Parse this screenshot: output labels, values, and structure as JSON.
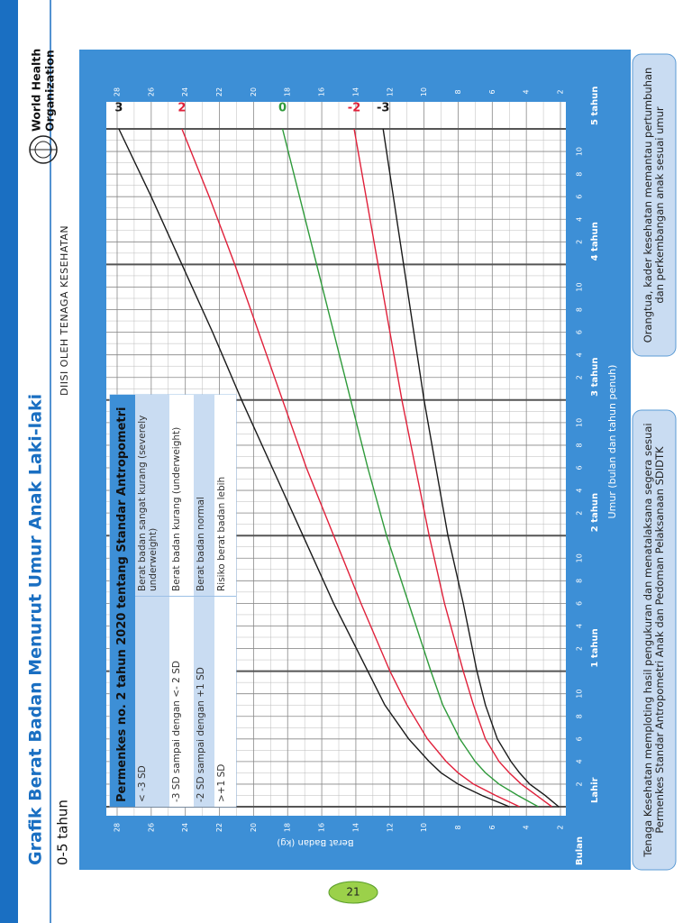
{
  "header": {
    "title": "Grafik Berat Badan Menurut Umur Anak Laki-laki",
    "subtitle": "0-5 tahun",
    "note": "DIISI OLEH TENAGA KESEHATAN",
    "organization": [
      "World Health",
      "Organization"
    ],
    "page": "21"
  },
  "chart_data": {
    "type": "line",
    "x_label": "Umur (bulan dan tahun penuh)",
    "y_label": "Berat Badan (kg)",
    "x_unit_label": "Bulan",
    "x": [
      0,
      1,
      2,
      3,
      4,
      6,
      9,
      12,
      18,
      24,
      30,
      36,
      42,
      48,
      54,
      60
    ],
    "series": [
      {
        "name": "3",
        "color": "#1a1a1a",
        "values": [
          5.0,
          6.6,
          8.0,
          9.0,
          9.7,
          10.9,
          12.3,
          13.3,
          15.3,
          17.1,
          18.9,
          20.7,
          22.4,
          24.2,
          26.0,
          27.9
        ]
      },
      {
        "name": "2",
        "color": "#e0203a",
        "values": [
          4.4,
          5.8,
          7.1,
          8.0,
          8.7,
          9.8,
          11.0,
          12.0,
          13.7,
          15.3,
          16.9,
          18.3,
          19.7,
          21.1,
          22.6,
          24.2
        ]
      },
      {
        "name": "0",
        "color": "#2e9a3a",
        "values": [
          3.3,
          4.5,
          5.6,
          6.4,
          7.0,
          7.9,
          8.9,
          9.6,
          10.9,
          12.2,
          13.3,
          14.3,
          15.3,
          16.3,
          17.3,
          18.3
        ]
      },
      {
        "name": "-2",
        "color": "#e0203a",
        "values": [
          2.5,
          3.4,
          4.3,
          5.0,
          5.6,
          6.4,
          7.1,
          7.7,
          8.8,
          9.7,
          10.5,
          11.3,
          12.0,
          12.7,
          13.4,
          14.1
        ]
      },
      {
        "name": "-3",
        "color": "#1a1a1a",
        "values": [
          2.1,
          2.9,
          3.8,
          4.4,
          4.9,
          5.7,
          6.4,
          6.9,
          7.7,
          8.6,
          9.3,
          10.0,
          10.6,
          11.2,
          11.8,
          12.4
        ]
      }
    ],
    "xlim": [
      0,
      60
    ],
    "ylim": [
      2,
      28
    ],
    "xticks": [
      {
        "value": 0,
        "label": "Lahir"
      },
      2,
      4,
      6,
      8,
      10,
      {
        "value": 12,
        "label": "1 tahun"
      },
      {
        "value": 14,
        "label": "2"
      },
      {
        "value": 16,
        "label": "4"
      },
      {
        "value": 18,
        "label": "6"
      },
      {
        "value": 20,
        "label": "8"
      },
      {
        "value": 22,
        "label": "10"
      },
      {
        "value": 24,
        "label": "2 tahun"
      },
      {
        "value": 26,
        "label": "2"
      },
      {
        "value": 28,
        "label": "4"
      },
      {
        "value": 30,
        "label": "6"
      },
      {
        "value": 32,
        "label": "8"
      },
      {
        "value": 34,
        "label": "10"
      },
      {
        "value": 36,
        "label": "3 tahun"
      },
      {
        "value": 38,
        "label": "2"
      },
      {
        "value": 40,
        "label": "4"
      },
      {
        "value": 42,
        "label": "6"
      },
      {
        "value": 44,
        "label": "8"
      },
      {
        "value": 46,
        "label": "10"
      },
      {
        "value": 48,
        "label": "4 tahun"
      },
      {
        "value": 50,
        "label": "2"
      },
      {
        "value": 52,
        "label": "4"
      },
      {
        "value": 54,
        "label": "6"
      },
      {
        "value": 56,
        "label": "8"
      },
      {
        "value": 58,
        "label": "10"
      },
      {
        "value": 60,
        "label": "5 tahun"
      }
    ],
    "yticks": [
      2,
      4,
      6,
      8,
      10,
      12,
      14,
      16,
      18,
      20,
      22,
      24,
      26,
      28
    ],
    "grid": true
  },
  "legend_table": {
    "title": "Permenkes no. 2 tahun 2020 tentang Standar Antropometri",
    "rows": [
      [
        "< -3 SD",
        "Berat badan sangat kurang (severely underweight)"
      ],
      [
        "-3 SD sampai dengan <- 2 SD",
        "Berat badan kurang (underweight)"
      ],
      [
        "-2 SD sampai dengan +1 SD",
        "Berat badan normal"
      ],
      [
        ">+1 SD",
        "Risiko berat badan lebih"
      ]
    ]
  },
  "notes": [
    "Tenaga Kesehatan memploting hasil pengukuran dan menatalaksana segera sesuai Permenkes Standar Antropometri Anak dan Pedoman Pelaksanaan SDIDTK",
    "Orangtua, kader kesehatan memantau pertumbuhan dan perkembangan anak sesuai umur"
  ]
}
